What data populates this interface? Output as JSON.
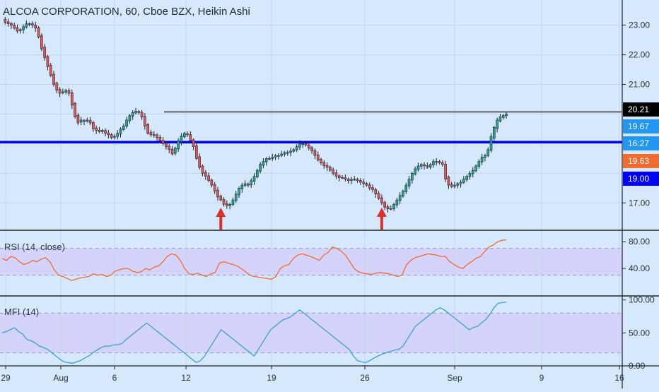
{
  "header": {
    "title": "ALCOA CORPORATION, 60, Cboe BZX, Heikin Ashi"
  },
  "colors": {
    "background": "#d6e8fb",
    "up": "#26a69a",
    "down": "#ef5350",
    "resistance_line": "#000000",
    "support_line": "#0000ff",
    "rsi_line": "#f26b2e",
    "mfi_line": "#3ba0d8",
    "band_fill": "#d4cffa",
    "arrow": "#d8322a"
  },
  "icons": [
    "up-arrow-icon",
    "up-arrow-icon"
  ],
  "panels": {
    "rsi": {
      "label": "RSI (14, close)"
    },
    "mfi": {
      "label": "MFI (14)"
    }
  },
  "chart_data": [
    {
      "type": "candlestick",
      "title": "ALCOA CORPORATION, 60, Cboe BZX, Heikin Ashi",
      "ylim": [
        16.1,
        23.85
      ],
      "y_ticks": [
        "23.00",
        "22.00",
        "21.00",
        "17.00"
      ],
      "x_ticks": [
        "29",
        "Aug",
        "6",
        "12",
        "19",
        "26",
        "Sep",
        "9",
        "16"
      ],
      "price_tags": [
        {
          "text": "20.21",
          "color": "#000000"
        },
        {
          "text": "19.67",
          "color": "#2196f3"
        },
        {
          "text": "16:27",
          "color": "#2196f3"
        },
        {
          "text": "19.63",
          "color": "#f26b2e"
        },
        {
          "text": "19.00",
          "color": "#0000ff"
        }
      ],
      "lines": [
        {
          "name": "resistance",
          "value": 20.07,
          "style": "thin-black"
        },
        {
          "name": "support",
          "value": 19.05,
          "style": "thick-blue"
        }
      ],
      "close_path": [
        23.2,
        23.1,
        23.05,
        23.0,
        22.9,
        22.8,
        22.85,
        22.95,
        23.05,
        23.05,
        23.0,
        22.9,
        22.6,
        22.2,
        21.9,
        21.6,
        21.3,
        21.0,
        20.8,
        20.7,
        20.75,
        20.8,
        20.7,
        20.3,
        19.9,
        19.7,
        19.8,
        19.75,
        19.8,
        19.7,
        19.5,
        19.45,
        19.4,
        19.45,
        19.35,
        19.3,
        19.2,
        19.25,
        19.35,
        19.5,
        19.6,
        19.8,
        19.95,
        20.05,
        20.1,
        20.05,
        19.9,
        19.6,
        19.35,
        19.3,
        19.3,
        19.2,
        19.1,
        19.0,
        18.9,
        18.8,
        18.65,
        18.85,
        19.1,
        19.25,
        19.35,
        19.3,
        19.1,
        18.9,
        18.5,
        18.2,
        18.0,
        17.9,
        17.75,
        17.6,
        17.4,
        17.2,
        17.1,
        16.95,
        16.9,
        16.95,
        17.1,
        17.3,
        17.5,
        17.6,
        17.65,
        17.6,
        17.75,
        17.9,
        18.1,
        18.3,
        18.4,
        18.5,
        18.5,
        18.55,
        18.6,
        18.6,
        18.65,
        18.7,
        18.7,
        18.75,
        18.8,
        18.9,
        19.0,
        19.0,
        18.95,
        18.85,
        18.75,
        18.6,
        18.45,
        18.35,
        18.25,
        18.2,
        18.1,
        18.0,
        17.9,
        17.85,
        17.85,
        17.8,
        17.75,
        17.8,
        17.8,
        17.75,
        17.7,
        17.65,
        17.6,
        17.5,
        17.45,
        17.3,
        17.15,
        17.0,
        16.85,
        16.8,
        16.8,
        16.95,
        17.1,
        17.25,
        17.4,
        17.6,
        17.8,
        18.0,
        18.15,
        18.25,
        18.3,
        18.25,
        18.2,
        18.3,
        18.4,
        18.4,
        18.35,
        18.3,
        17.8,
        17.6,
        17.55,
        17.6,
        17.65,
        17.7,
        17.8,
        17.9,
        18.0,
        18.1,
        18.25,
        18.4,
        18.55,
        18.6,
        18.8,
        19.25,
        19.55,
        19.8,
        19.9,
        19.95,
        20.0
      ],
      "arrows": [
        {
          "x_index": 72
        },
        {
          "x_index": 125
        }
      ]
    },
    {
      "type": "line",
      "name": "RSI (14, close)",
      "ylim": [
        0,
        95
      ],
      "y_ticks": [
        "80.00",
        "40.00"
      ],
      "band": [
        30,
        70
      ],
      "values": [
        55,
        52,
        58,
        56,
        50,
        46,
        48,
        52,
        50,
        54,
        56,
        50,
        38,
        30,
        28,
        25,
        22,
        24,
        26,
        27,
        28,
        32,
        30,
        31,
        28,
        30,
        36,
        38,
        40,
        40,
        36,
        34,
        35,
        40,
        38,
        42,
        44,
        50,
        58,
        62,
        60,
        52,
        40,
        32,
        31,
        33,
        30,
        28,
        32,
        34,
        48,
        50,
        48,
        46,
        44,
        40,
        35,
        30,
        28,
        27,
        26,
        25,
        24,
        28,
        40,
        44,
        46,
        55,
        60,
        62,
        60,
        58,
        55,
        52,
        60,
        64,
        72,
        70,
        66,
        60,
        50,
        40,
        35,
        33,
        32,
        31,
        33,
        34,
        33,
        32,
        30,
        28,
        30,
        45,
        52,
        56,
        58,
        60,
        62,
        61,
        60,
        58,
        58,
        50,
        46,
        42,
        40,
        46,
        50,
        55,
        58,
        65,
        72,
        75,
        80,
        82,
        83
      ]
    },
    {
      "type": "line",
      "name": "MFI (14)",
      "ylim": [
        0,
        105
      ],
      "y_ticks": [
        "100.00",
        "50.00",
        "0.00"
      ],
      "band": [
        20,
        80
      ],
      "values": [
        50,
        52,
        55,
        58,
        52,
        48,
        40,
        38,
        35,
        30,
        28,
        25,
        20,
        15,
        10,
        6,
        5,
        4,
        6,
        8,
        12,
        15,
        20,
        24,
        28,
        30,
        30,
        32,
        32,
        34,
        40,
        45,
        50,
        55,
        60,
        65,
        60,
        55,
        50,
        45,
        40,
        35,
        30,
        25,
        20,
        15,
        10,
        5,
        8,
        15,
        25,
        35,
        45,
        55,
        50,
        45,
        40,
        35,
        30,
        25,
        20,
        15,
        25,
        35,
        45,
        55,
        60,
        65,
        70,
        72,
        75,
        80,
        85,
        80,
        75,
        70,
        65,
        60,
        55,
        50,
        45,
        40,
        35,
        30,
        25,
        15,
        8,
        6,
        5,
        8,
        12,
        15,
        18,
        20,
        22,
        24,
        25,
        30,
        40,
        50,
        60,
        65,
        70,
        75,
        80,
        85,
        88,
        85,
        80,
        75,
        70,
        65,
        60,
        55,
        58,
        60,
        65,
        70,
        78,
        88,
        95,
        96,
        97
      ]
    }
  ]
}
